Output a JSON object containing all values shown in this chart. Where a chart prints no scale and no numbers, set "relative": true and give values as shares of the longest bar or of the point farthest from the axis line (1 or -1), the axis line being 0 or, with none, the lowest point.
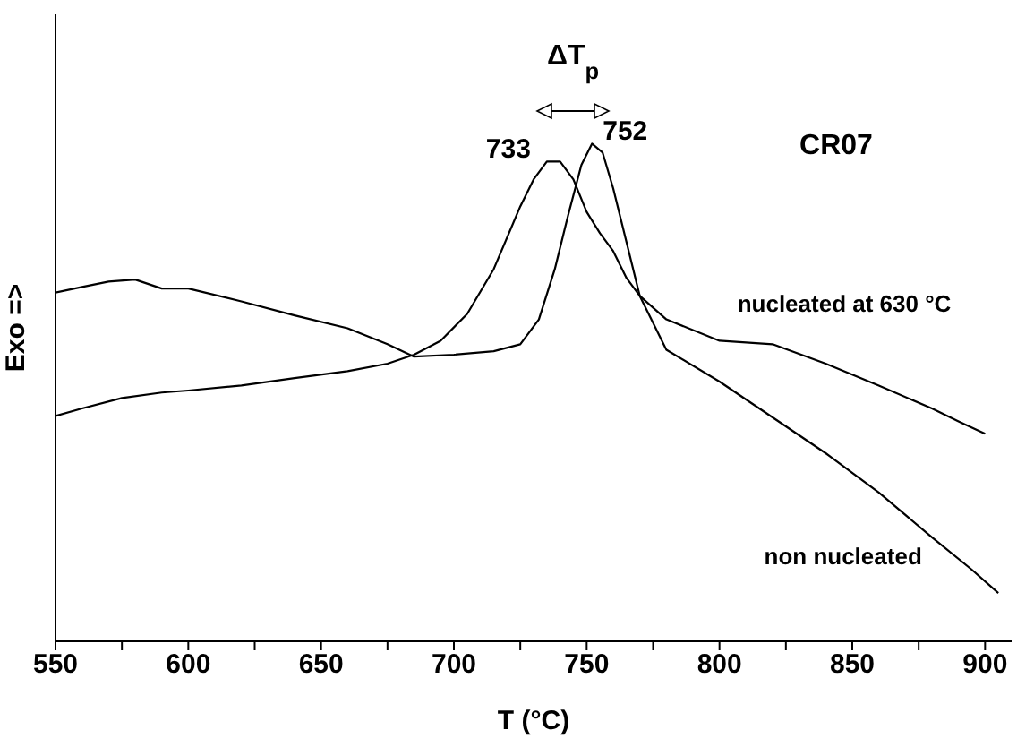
{
  "chart_data": {
    "type": "line",
    "relative": true,
    "xlabel": "T (°C)",
    "ylabel": "Exo =>",
    "xlim": [
      550,
      910
    ],
    "xticks": [
      550,
      {
        "value": 575,
        "label": null
      },
      600,
      {
        "value": 625,
        "label": null
      },
      650,
      {
        "value": 675,
        "label": null
      },
      700,
      {
        "value": 725,
        "label": null
      },
      750,
      {
        "value": 775,
        "label": null
      },
      800,
      {
        "value": 825,
        "label": null
      },
      850,
      {
        "value": 875,
        "label": null
      },
      900
    ],
    "grid": false,
    "legend": false,
    "marker": "none",
    "line_style": "solid",
    "series": [
      {
        "name": "nucleated at 630 °C",
        "color": "#000000",
        "x": [
          550,
          560,
          575,
          590,
          600,
          620,
          640,
          660,
          675,
          685,
          695,
          705,
          715,
          725,
          730,
          735,
          740,
          745,
          750,
          755,
          760,
          765,
          770,
          780,
          800,
          820,
          840,
          860,
          880,
          890,
          900
        ],
        "values": [
          0.453,
          0.468,
          0.489,
          0.5,
          0.504,
          0.514,
          0.529,
          0.543,
          0.558,
          0.576,
          0.604,
          0.658,
          0.748,
          0.874,
          0.928,
          0.964,
          0.964,
          0.928,
          0.863,
          0.82,
          0.784,
          0.73,
          0.694,
          0.647,
          0.604,
          0.597,
          0.558,
          0.514,
          0.468,
          0.442,
          0.417
        ]
      },
      {
        "name": "non nucleated",
        "color": "#000000",
        "x": [
          550,
          560,
          570,
          580,
          590,
          600,
          620,
          640,
          660,
          675,
          685,
          700,
          715,
          725,
          732,
          738,
          743,
          748,
          752,
          756,
          760,
          765,
          770,
          780,
          800,
          820,
          840,
          860,
          880,
          895,
          905
        ],
        "values": [
          0.701,
          0.712,
          0.723,
          0.727,
          0.709,
          0.709,
          0.683,
          0.655,
          0.629,
          0.597,
          0.572,
          0.576,
          0.583,
          0.597,
          0.647,
          0.748,
          0.856,
          0.957,
          1,
          0.982,
          0.91,
          0.802,
          0.694,
          0.586,
          0.522,
          0.45,
          0.378,
          0.299,
          0.209,
          0.144,
          0.097
        ]
      }
    ],
    "annotations": [
      {
        "text": "733",
        "x": 733,
        "y": 0.964
      },
      {
        "text": "752",
        "x": 752,
        "y": 1
      },
      "ΔT$_{p}$",
      "CR07"
    ]
  }
}
